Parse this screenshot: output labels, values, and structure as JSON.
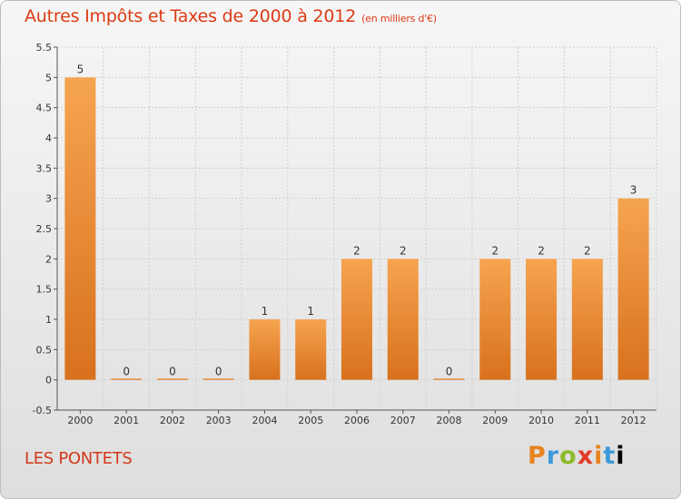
{
  "title": "Autres Impôts et Taxes de 2000 à 2012",
  "unit": "(en milliers d'€)",
  "commune": "LES PONTETS",
  "logo_letters": [
    "P",
    "r",
    "o",
    "x",
    "i",
    "t",
    "i"
  ],
  "colors": {
    "bar_light": "#f6a450",
    "bar_dark": "#d8711d",
    "title": "#dd3a14",
    "grid": "#cfcfcf"
  },
  "chart_data": {
    "type": "bar",
    "title": "Autres Impôts et Taxes de 2000 à 2012",
    "xlabel": "",
    "ylabel": "",
    "categories": [
      "2000",
      "2001",
      "2002",
      "2003",
      "2004",
      "2005",
      "2006",
      "2007",
      "2008",
      "2009",
      "2010",
      "2011",
      "2012"
    ],
    "values": [
      5,
      0,
      0,
      0,
      1,
      1,
      2,
      2,
      0,
      2,
      2,
      2,
      3
    ],
    "ylim": [
      -0.5,
      5.5
    ],
    "yticks": [
      "-0.5",
      "0",
      "0.5",
      "1",
      "1.5",
      "2",
      "2.5",
      "3",
      "3.5",
      "4",
      "4.5",
      "5",
      "5.5"
    ],
    "grid": true
  }
}
